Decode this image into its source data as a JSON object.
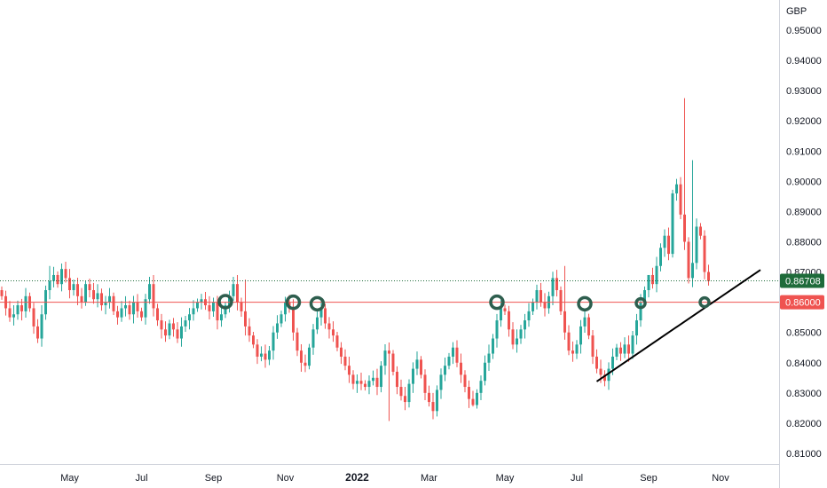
{
  "chart_data": {
    "type": "candlestick",
    "currency_label": "GBP",
    "colors": {
      "up": "#26a69a",
      "down": "#ef5350",
      "support_line": "#ef5350",
      "last_price_badge": "#1e6b3a",
      "level_badge": "#ef5350",
      "markers": "#2e5e4e",
      "trendline": "#000000",
      "axis_border": "#d1d4dc"
    },
    "y_ticks": [
      "0.95000",
      "0.94000",
      "0.93000",
      "0.92000",
      "0.91000",
      "0.90000",
      "0.89000",
      "0.88000",
      "0.87000",
      "0.86000",
      "0.85000",
      "0.84000",
      "0.83000",
      "0.82000",
      "0.81000"
    ],
    "ylim": [
      0.8055,
      0.9535
    ],
    "x_ticks": [
      {
        "label": "May",
        "index": 17,
        "bold": false
      },
      {
        "label": "Jul",
        "index": 35,
        "bold": false
      },
      {
        "label": "Sep",
        "index": 53,
        "bold": false
      },
      {
        "label": "Nov",
        "index": 71,
        "bold": false
      },
      {
        "label": "2022",
        "index": 89,
        "bold": true
      },
      {
        "label": "Mar",
        "index": 107,
        "bold": false
      },
      {
        "label": "May",
        "index": 126,
        "bold": false
      },
      {
        "label": "Jul",
        "index": 144,
        "bold": false
      },
      {
        "label": "Sep",
        "index": 162,
        "bold": false
      },
      {
        "label": "Nov",
        "index": 180,
        "bold": false
      }
    ],
    "last_price": "0.86708",
    "last_price_value": 0.86708,
    "support_level": "0.86000",
    "support_value": 0.86,
    "closes": [
      0.862,
      0.858,
      0.855,
      0.856,
      0.859,
      0.857,
      0.862,
      0.858,
      0.852,
      0.848,
      0.856,
      0.864,
      0.867,
      0.869,
      0.866,
      0.871,
      0.868,
      0.864,
      0.866,
      0.862,
      0.86,
      0.866,
      0.864,
      0.861,
      0.863,
      0.859,
      0.86,
      0.862,
      0.857,
      0.855,
      0.858,
      0.859,
      0.856,
      0.86,
      0.857,
      0.855,
      0.861,
      0.866,
      0.858,
      0.854,
      0.851,
      0.849,
      0.853,
      0.851,
      0.848,
      0.852,
      0.854,
      0.856,
      0.858,
      0.86,
      0.861,
      0.859,
      0.857,
      0.86,
      0.854,
      0.856,
      0.859,
      0.862,
      0.866,
      0.86,
      0.857,
      0.852,
      0.849,
      0.846,
      0.842,
      0.843,
      0.841,
      0.844,
      0.85,
      0.853,
      0.856,
      0.86,
      0.858,
      0.85,
      0.844,
      0.84,
      0.839,
      0.845,
      0.851,
      0.855,
      0.858,
      0.853,
      0.851,
      0.849,
      0.845,
      0.842,
      0.839,
      0.836,
      0.833,
      0.834,
      0.833,
      0.832,
      0.834,
      0.835,
      0.832,
      0.839,
      0.844,
      0.843,
      0.837,
      0.832,
      0.829,
      0.827,
      0.833,
      0.838,
      0.841,
      0.836,
      0.83,
      0.827,
      0.824,
      0.831,
      0.836,
      0.839,
      0.842,
      0.845,
      0.84,
      0.836,
      0.832,
      0.828,
      0.826,
      0.83,
      0.834,
      0.84,
      0.843,
      0.848,
      0.854,
      0.858,
      0.857,
      0.851,
      0.846,
      0.848,
      0.851,
      0.854,
      0.857,
      0.86,
      0.864,
      0.86,
      0.858,
      0.862,
      0.868,
      0.864,
      0.857,
      0.85,
      0.844,
      0.843,
      0.846,
      0.852,
      0.855,
      0.849,
      0.842,
      0.838,
      0.836,
      0.834,
      0.838,
      0.842,
      0.845,
      0.843,
      0.846,
      0.843,
      0.849,
      0.854,
      0.86,
      0.864,
      0.869,
      0.866,
      0.872,
      0.878,
      0.882,
      0.876,
      0.896,
      0.899,
      0.889,
      0.88,
      0.868,
      0.873,
      0.885,
      0.882,
      0.87,
      0.867
    ],
    "highs": {
      "171": 0.9275,
      "173": 0.907,
      "162": 0.866,
      "141": 0.872,
      "12": 0.872,
      "61": 0.8675
    },
    "lows": {
      "97": 0.8207,
      "118": 0.8255
    },
    "circle_markers": [
      {
        "index": 56,
        "price": 0.8602
      },
      {
        "index": 73,
        "price": 0.86
      },
      {
        "index": 79,
        "price": 0.8595
      },
      {
        "index": 124,
        "price": 0.86
      },
      {
        "index": 146,
        "price": 0.8595
      },
      {
        "index": 160,
        "price": 0.8597
      },
      {
        "index": 176,
        "price": 0.86
      }
    ],
    "trendline": {
      "start": {
        "index": 149,
        "price": 0.8338
      },
      "end": {
        "index": 190,
        "price": 0.8707
      }
    }
  }
}
